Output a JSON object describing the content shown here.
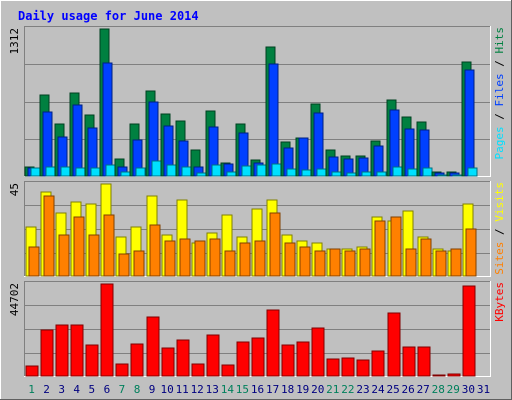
{
  "chart_data": {
    "type": "bar",
    "title": "Daily usage for June 2014",
    "categories": [
      "1",
      "2",
      "3",
      "4",
      "5",
      "6",
      "7",
      "8",
      "9",
      "10",
      "11",
      "12",
      "13",
      "14",
      "15",
      "16",
      "17",
      "18",
      "19",
      "20",
      "21",
      "22",
      "23",
      "24",
      "25",
      "26",
      "27",
      "28",
      "29",
      "30",
      "31"
    ],
    "weekend_days": [
      "1",
      "7",
      "8",
      "14",
      "15",
      "21",
      "22",
      "28",
      "29"
    ],
    "panels": [
      {
        "id": "top",
        "max_label": "1312",
        "ylim": [
          0,
          1312
        ],
        "legend": [
          "Pages",
          "Files",
          "Hits"
        ],
        "series": [
          {
            "name": "Hits",
            "values": [
              80,
              720,
              460,
              740,
              540,
              1312,
              150,
              460,
              760,
              550,
              490,
              230,
              580,
              120,
              460,
              140,
              1150,
              300,
              340,
              640,
              230,
              180,
              180,
              310,
              680,
              530,
              480,
              40,
              40,
              1020,
              0
            ]
          },
          {
            "name": "Files",
            "values": [
              70,
              570,
              350,
              630,
              430,
              1010,
              80,
              320,
              660,
              450,
              310,
              80,
              440,
              110,
              380,
              120,
              1000,
              250,
              340,
              560,
              170,
              150,
              160,
              270,
              590,
              420,
              410,
              30,
              30,
              950,
              0
            ]
          },
          {
            "name": "Pages",
            "values": [
              70,
              80,
              80,
              70,
              70,
              100,
              40,
              70,
              130,
              100,
              80,
              30,
              100,
              40,
              90,
              100,
              110,
              60,
              50,
              60,
              40,
              30,
              40,
              40,
              80,
              60,
              70,
              10,
              10,
              70,
              0
            ]
          }
        ],
        "colors": {
          "Hits": "#008040",
          "Files": "#0040ff",
          "Pages": "#00e0ff"
        }
      },
      {
        "id": "middle",
        "max_label": "45",
        "ylim": [
          0,
          45
        ],
        "legend": [
          "Sites",
          "Visits"
        ],
        "series": [
          {
            "name": "Visits",
            "values": [
              24,
              41,
              31,
              36,
              35,
              45,
              19,
              24,
              39,
              20,
              37,
              16,
              21,
              30,
              19,
              33,
              37,
              20,
              17,
              16,
              13,
              13,
              14,
              29,
              27,
              32,
              19,
              13,
              12,
              35,
              0
            ]
          },
          {
            "name": "Sites",
            "values": [
              14,
              39,
              20,
              29,
              20,
              30,
              11,
              12,
              25,
              17,
              18,
              17,
              18,
              12,
              16,
              17,
              31,
              16,
              14,
              12,
              13,
              12,
              13,
              27,
              29,
              13,
              18,
              12,
              13,
              23,
              0
            ]
          }
        ],
        "colors": {
          "Visits": "#ffff00",
          "Sites": "#ff8000"
        }
      },
      {
        "id": "bottom",
        "max_label": "44702",
        "ylim": [
          0,
          44702
        ],
        "legend": [
          "KBytes"
        ],
        "series": [
          {
            "name": "KBytes",
            "values": [
              4800,
              22500,
              24900,
              24900,
              15200,
              44702,
              5900,
              15700,
              28700,
              13700,
              17700,
              5900,
              19900,
              5300,
              16300,
              18300,
              32200,
              15200,
              16600,
              23500,
              8500,
              8600,
              7900,
              12200,
              30600,
              13900,
              13900,
              700,
              800,
              43600,
              0
            ]
          }
        ],
        "colors": {
          "KBytes": "#ff0000"
        }
      }
    ],
    "colors": {
      "background": "#c0c0c0",
      "plot": "#c0c0c0",
      "grid": "#808080",
      "title": "#0000ff",
      "weekday_label": "#000080",
      "weekend_label": "#00805c",
      "separator": "#000000"
    }
  }
}
